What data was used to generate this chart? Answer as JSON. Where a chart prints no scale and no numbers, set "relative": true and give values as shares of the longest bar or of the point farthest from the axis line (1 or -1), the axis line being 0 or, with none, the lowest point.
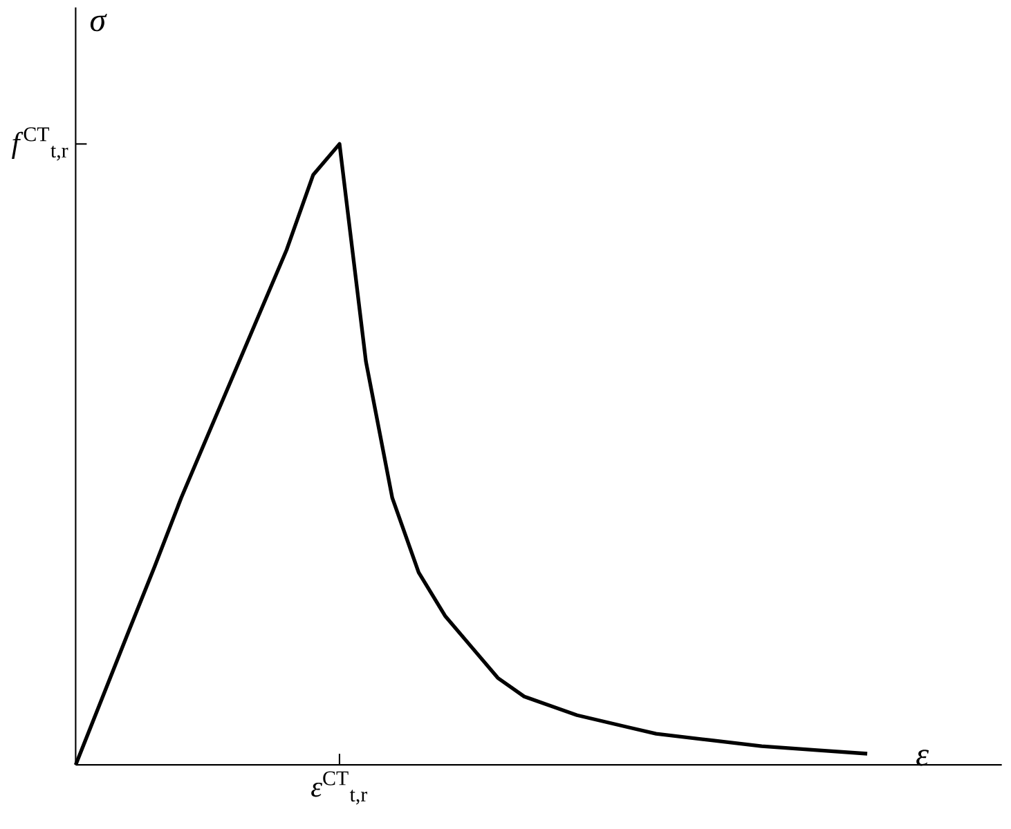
{
  "chart_data": {
    "type": "line",
    "xlabel": "*ε*",
    "ylabel": "*σ*",
    "relative": true,
    "categories": [
      null,
      null,
      null,
      null,
      null,
      null,
      null,
      null,
      null,
      null,
      null,
      null,
      null,
      null,
      null,
      null,
      null,
      null,
      null,
      null,
      null,
      null,
      null,
      null,
      null,
      null,
      null,
      null,
      null,
      null,
      null
    ],
    "series": [
      {
        "color": "#000000",
        "values": [
          0,
          0.107,
          0.214,
          0.32,
          0.43,
          0.53,
          0.63,
          0.73,
          0.83,
          0.95,
          1.0,
          0.65,
          0.43,
          0.31,
          0.24,
          0.19,
          0.14,
          0.11,
          0.095,
          0.08,
          0.07,
          0.06,
          0.05,
          0.045,
          0.04,
          0.035,
          0.03,
          0.027,
          0.024,
          0.021,
          0.018
        ]
      }
    ],
    "annotations": [
      "*ε*$^{CT}$$_{t,r}$",
      "*f*$^{CT}$$_{t,r}$"
    ],
    "marker": "none",
    "line_style": "solid"
  }
}
